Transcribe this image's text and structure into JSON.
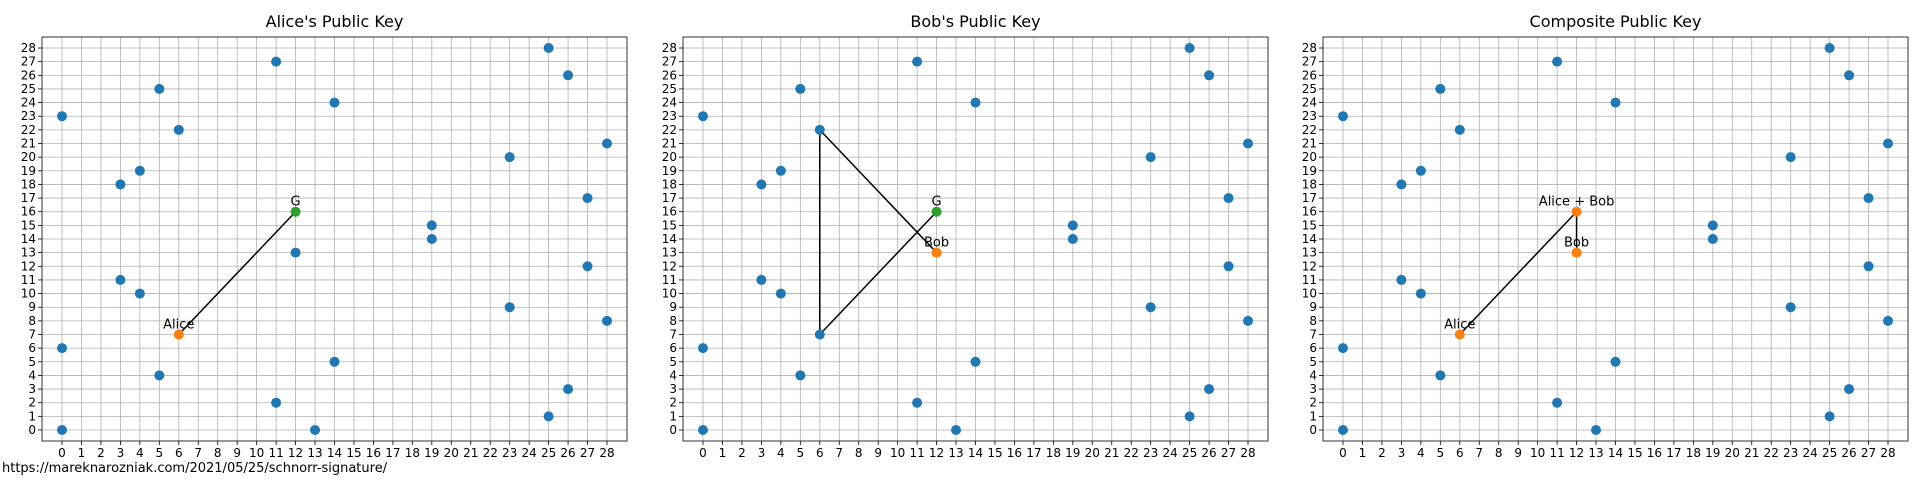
{
  "footer_url": "https://mareknarozniak.com/2021/05/25/schnorr-signature/",
  "colors": {
    "base": "#1f77b4",
    "point": "#ff7f0e",
    "generator": "#2ca02c",
    "line": "#000000",
    "grid": "#b0b0b0"
  },
  "chart_data": [
    {
      "type": "scatter",
      "title": "Alice's Public Key",
      "xlim": [
        0,
        28
      ],
      "ylim": [
        0,
        28
      ],
      "grid": true,
      "xticks": [
        "0",
        "1",
        "2",
        "3",
        "4",
        "5",
        "6",
        "7",
        "8",
        "9",
        "10",
        "11",
        "12",
        "13",
        "14",
        "15",
        "16",
        "17",
        "18",
        "19",
        "20",
        "21",
        "22",
        "23",
        "24",
        "25",
        "26",
        "27",
        "28"
      ],
      "yticks": [
        "0",
        "1",
        "2",
        "3",
        "4",
        "5",
        "6",
        "7",
        "8",
        "9",
        "10",
        "11",
        "12",
        "13",
        "14",
        "15",
        "16",
        "17",
        "18",
        "19",
        "20",
        "21",
        "22",
        "23",
        "24",
        "25",
        "26",
        "27",
        "28"
      ],
      "points": [
        [
          0,
          0
        ],
        [
          0,
          6
        ],
        [
          0,
          23
        ],
        [
          3,
          11
        ],
        [
          3,
          18
        ],
        [
          4,
          10
        ],
        [
          4,
          19
        ],
        [
          5,
          4
        ],
        [
          5,
          25
        ],
        [
          6,
          22
        ],
        [
          11,
          2
        ],
        [
          11,
          27
        ],
        [
          12,
          13
        ],
        [
          13,
          0
        ],
        [
          14,
          5
        ],
        [
          14,
          24
        ],
        [
          19,
          14
        ],
        [
          19,
          15
        ],
        [
          23,
          9
        ],
        [
          23,
          20
        ],
        [
          25,
          1
        ],
        [
          25,
          28
        ],
        [
          26,
          3
        ],
        [
          26,
          26
        ],
        [
          27,
          12
        ],
        [
          27,
          17
        ],
        [
          28,
          8
        ],
        [
          28,
          21
        ]
      ],
      "lines": [
        [
          [
            6,
            7
          ],
          [
            12,
            16
          ]
        ]
      ],
      "highlights": [
        {
          "x": 12,
          "y": 16,
          "label": "G",
          "color": "generator"
        },
        {
          "x": 6,
          "y": 7,
          "label": "Alice",
          "color": "point"
        }
      ]
    },
    {
      "type": "scatter",
      "title": "Bob's Public Key",
      "xlim": [
        0,
        28
      ],
      "ylim": [
        0,
        28
      ],
      "grid": true,
      "xticks": [
        "0",
        "1",
        "2",
        "3",
        "4",
        "5",
        "6",
        "7",
        "8",
        "9",
        "10",
        "11",
        "12",
        "13",
        "14",
        "15",
        "16",
        "17",
        "18",
        "19",
        "20",
        "21",
        "22",
        "23",
        "24",
        "25",
        "26",
        "27",
        "28"
      ],
      "yticks": [
        "0",
        "1",
        "2",
        "3",
        "4",
        "5",
        "6",
        "7",
        "8",
        "9",
        "10",
        "11",
        "12",
        "13",
        "14",
        "15",
        "16",
        "17",
        "18",
        "19",
        "20",
        "21",
        "22",
        "23",
        "24",
        "25",
        "26",
        "27",
        "28"
      ],
      "points": [
        [
          0,
          0
        ],
        [
          0,
          6
        ],
        [
          0,
          23
        ],
        [
          3,
          11
        ],
        [
          3,
          18
        ],
        [
          4,
          10
        ],
        [
          4,
          19
        ],
        [
          5,
          4
        ],
        [
          5,
          25
        ],
        [
          6,
          7
        ],
        [
          6,
          22
        ],
        [
          11,
          2
        ],
        [
          11,
          27
        ],
        [
          13,
          0
        ],
        [
          14,
          5
        ],
        [
          14,
          24
        ],
        [
          19,
          14
        ],
        [
          19,
          15
        ],
        [
          23,
          9
        ],
        [
          23,
          20
        ],
        [
          25,
          1
        ],
        [
          25,
          28
        ],
        [
          26,
          3
        ],
        [
          26,
          26
        ],
        [
          27,
          12
        ],
        [
          27,
          17
        ],
        [
          28,
          8
        ],
        [
          28,
          21
        ]
      ],
      "lines": [
        [
          [
            12,
            16
          ],
          [
            6,
            7
          ]
        ],
        [
          [
            6,
            7
          ],
          [
            6,
            22
          ]
        ],
        [
          [
            6,
            22
          ],
          [
            12,
            13
          ]
        ]
      ],
      "highlights": [
        {
          "x": 12,
          "y": 16,
          "label": "G",
          "color": "generator"
        },
        {
          "x": 12,
          "y": 13,
          "label": "Bob",
          "color": "point"
        }
      ]
    },
    {
      "type": "scatter",
      "title": "Composite Public Key",
      "xlim": [
        0,
        28
      ],
      "ylim": [
        0,
        28
      ],
      "grid": true,
      "xticks": [
        "0",
        "1",
        "2",
        "3",
        "4",
        "5",
        "6",
        "7",
        "8",
        "9",
        "10",
        "11",
        "12",
        "13",
        "14",
        "15",
        "16",
        "17",
        "18",
        "19",
        "20",
        "21",
        "22",
        "23",
        "24",
        "25",
        "26",
        "27",
        "28"
      ],
      "yticks": [
        "0",
        "1",
        "2",
        "3",
        "4",
        "5",
        "6",
        "7",
        "8",
        "9",
        "10",
        "11",
        "12",
        "13",
        "14",
        "15",
        "16",
        "17",
        "18",
        "19",
        "20",
        "21",
        "22",
        "23",
        "24",
        "25",
        "26",
        "27",
        "28"
      ],
      "points": [
        [
          0,
          0
        ],
        [
          0,
          6
        ],
        [
          0,
          23
        ],
        [
          3,
          11
        ],
        [
          3,
          18
        ],
        [
          4,
          10
        ],
        [
          4,
          19
        ],
        [
          5,
          4
        ],
        [
          5,
          25
        ],
        [
          6,
          22
        ],
        [
          11,
          2
        ],
        [
          11,
          27
        ],
        [
          13,
          0
        ],
        [
          14,
          5
        ],
        [
          14,
          24
        ],
        [
          19,
          14
        ],
        [
          19,
          15
        ],
        [
          23,
          9
        ],
        [
          23,
          20
        ],
        [
          25,
          1
        ],
        [
          25,
          28
        ],
        [
          26,
          3
        ],
        [
          26,
          26
        ],
        [
          27,
          12
        ],
        [
          27,
          17
        ],
        [
          28,
          8
        ],
        [
          28,
          21
        ]
      ],
      "lines": [
        [
          [
            6,
            7
          ],
          [
            12,
            16
          ]
        ],
        [
          [
            12,
            16
          ],
          [
            12,
            13
          ]
        ]
      ],
      "highlights": [
        {
          "x": 12,
          "y": 16,
          "label": "Alice + Bob",
          "color": "point"
        },
        {
          "x": 12,
          "y": 13,
          "label": "Bob",
          "color": "point"
        },
        {
          "x": 6,
          "y": 7,
          "label": "Alice",
          "color": "point"
        }
      ]
    }
  ]
}
